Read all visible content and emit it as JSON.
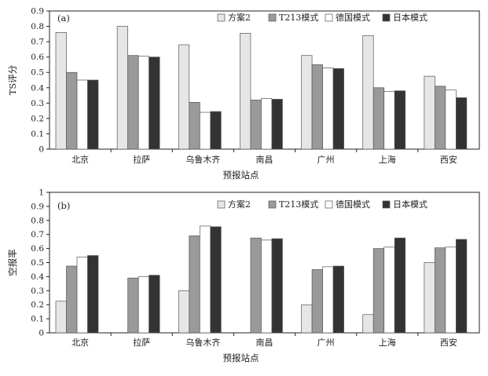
{
  "chart_data": [
    {
      "type": "bar",
      "panel_label": "(a)",
      "ylabel": "TS评分",
      "xlabel": "预报站点",
      "ylim": [
        0,
        0.9
      ],
      "yticks": [
        "0",
        "0.1",
        "0.2",
        "0.3",
        "0.4",
        "0.5",
        "0.6",
        "0.7",
        "0.8",
        "0.9"
      ],
      "grid": false,
      "legend_position": "top-right",
      "categories": [
        "北京",
        "拉萨",
        "乌鲁木齐",
        "南昌",
        "广州",
        "上海",
        "西安"
      ],
      "series": [
        {
          "name": "方案2",
          "color": "#e6e6e6",
          "values": [
            0.76,
            0.8,
            0.68,
            0.755,
            0.61,
            0.74,
            0.475
          ]
        },
        {
          "name": "T213模式",
          "color": "#9a9a9a",
          "values": [
            0.5,
            0.61,
            0.305,
            0.32,
            0.55,
            0.4,
            0.41
          ]
        },
        {
          "name": "德国模式",
          "color": "#ffffff",
          "values": [
            0.45,
            0.605,
            0.24,
            0.33,
            0.53,
            0.375,
            0.385
          ]
        },
        {
          "name": "日本模式",
          "color": "#333333",
          "values": [
            0.45,
            0.6,
            0.245,
            0.325,
            0.525,
            0.38,
            0.335
          ]
        }
      ]
    },
    {
      "type": "bar",
      "panel_label": "(b)",
      "ylabel": "空报率",
      "xlabel": "预报站点",
      "ylim": [
        0,
        1
      ],
      "yticks": [
        "0",
        "0.1",
        "0.2",
        "0.3",
        "0.4",
        "0.5",
        "0.6",
        "0.7",
        "0.8",
        "0.9",
        "1"
      ],
      "grid": false,
      "legend_position": "top-right",
      "categories": [
        "北京",
        "拉萨",
        "乌鲁木齐",
        "南昌",
        "广州",
        "上海",
        "西安"
      ],
      "series": [
        {
          "name": "方案2",
          "color": "#e6e6e6",
          "values": [
            0.225,
            0,
            0.3,
            0,
            0.2,
            0.13,
            0.5
          ]
        },
        {
          "name": "T213模式",
          "color": "#9a9a9a",
          "values": [
            0.475,
            0.39,
            0.69,
            0.675,
            0.45,
            0.6,
            0.605
          ]
        },
        {
          "name": "德国模式",
          "color": "#ffffff",
          "values": [
            0.54,
            0.4,
            0.76,
            0.66,
            0.47,
            0.61,
            0.61
          ]
        },
        {
          "name": "日本模式",
          "color": "#333333",
          "values": [
            0.55,
            0.41,
            0.755,
            0.67,
            0.475,
            0.675,
            0.665
          ]
        }
      ]
    }
  ]
}
